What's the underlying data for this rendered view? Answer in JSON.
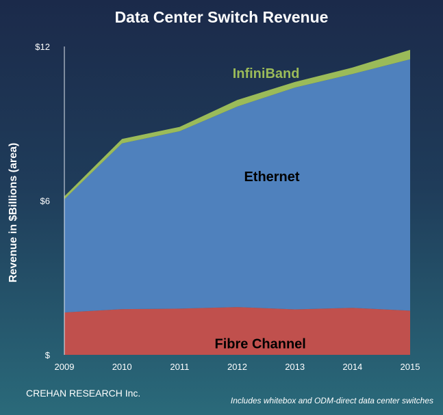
{
  "chart_data": {
    "type": "area",
    "stacked": true,
    "title": "Data Center Switch Revenue",
    "ylabel": "Revenue in $Billions (area)",
    "xlabel": "",
    "x": [
      "2009",
      "2010",
      "2011",
      "2012",
      "2013",
      "2014",
      "2015"
    ],
    "ylim": [
      0,
      12
    ],
    "yticks": [
      {
        "value": 0,
        "label": "$"
      },
      {
        "value": 6,
        "label": "$6"
      },
      {
        "value": 12,
        "label": "$12"
      }
    ],
    "series": [
      {
        "name": "Fibre Channel",
        "color": "#c0504d",
        "values": [
          1.65,
          1.78,
          1.8,
          1.86,
          1.77,
          1.83,
          1.72
        ]
      },
      {
        "name": "Ethernet",
        "color": "#4f81bd",
        "values": [
          4.4,
          6.45,
          6.9,
          7.8,
          8.63,
          9.1,
          9.78
        ]
      },
      {
        "name": "InfiniBand",
        "color": "#9bbb59",
        "values": [
          0.12,
          0.17,
          0.17,
          0.26,
          0.22,
          0.25,
          0.37
        ]
      }
    ],
    "series_label_colors": {
      "Fibre Channel": "#000000",
      "Ethernet": "#000000",
      "InfiniBand": "#9bbb59"
    },
    "grid": false,
    "legend": "none (series labeled inside areas)",
    "credit": "CREHAN RESEARCH Inc.",
    "footnote": "Includes whitebox and ODM-direct data center switches"
  }
}
